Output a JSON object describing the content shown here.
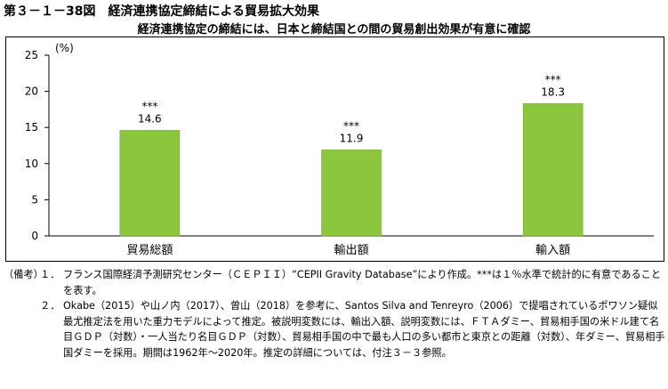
{
  "figure": {
    "title": "第３－１－38図　経済連携協定締結による貿易拡大効果",
    "subtitle": "経済連携協定の締結には、日本と締結国との間の貿易創出効果が有意に確認"
  },
  "chart_data": {
    "type": "bar",
    "categories": [
      "貿易総額",
      "輸出額",
      "輸入額"
    ],
    "values": [
      14.6,
      11.9,
      18.3
    ],
    "value_labels": [
      "14.6",
      "11.9",
      "18.3"
    ],
    "significance": [
      "***",
      "***",
      "***"
    ],
    "unit_label": "(%)",
    "ylim": [
      0,
      25
    ],
    "yticks": [
      0,
      5,
      10,
      15,
      20,
      25
    ],
    "ytick_labels": [
      "0",
      "5",
      "10",
      "15",
      "20",
      "25"
    ],
    "grid": false,
    "bar_color": "#8cc63f"
  },
  "notes": {
    "head": "（備考）",
    "items": [
      {
        "num": "１．",
        "text": "フランス国際経済予測研究センター（ＣＥＰＩＩ）“CEPII Gravity Database”により作成。***は１％水準で統計的に有意であることを表す。"
      },
      {
        "num": "２．",
        "text": "Okabe（2015）や山ノ内（2017）、曾山（2018）を参考に、Santos Silva and Tenreyro（2006）で提唱されているポワソン疑似最尤推定法を用いた重力モデルによって推定。被説明変数には、輸出入額、説明変数には、ＦＴＡダミー、貿易相手国の米ドル建て名目ＧＤＰ（対数）・一人当たり名目ＧＤＰ（対数）、貿易相手国の中で最も人口の多い都市と東京との距離（対数）、年ダミー、貿易相手国ダミーを採用。期間は1962年～2020年。推定の詳細については、付注３－３参照。"
      }
    ]
  }
}
